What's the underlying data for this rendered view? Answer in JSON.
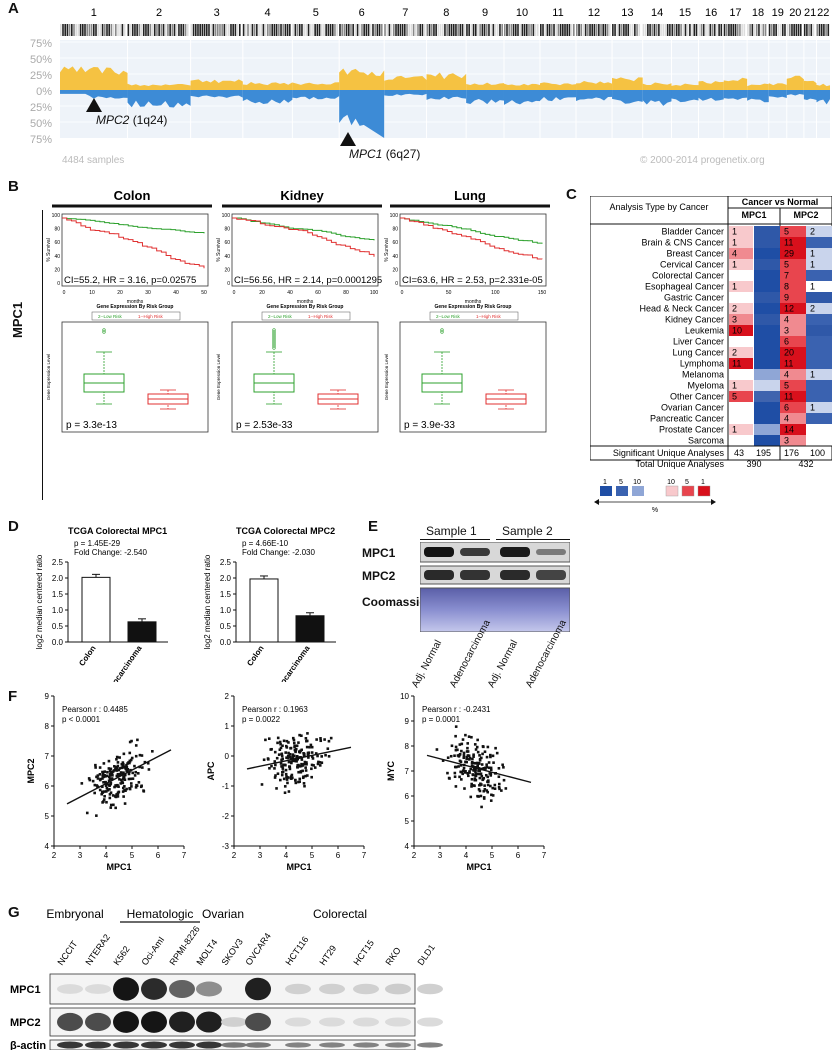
{
  "panel_labels": {
    "a": "A",
    "b": "B",
    "c": "C",
    "d": "D",
    "e": "E",
    "f": "F",
    "g": "G"
  },
  "panel_a": {
    "chromosomes": [
      "1",
      "2",
      "3",
      "4",
      "5",
      "6",
      "7",
      "8",
      "9",
      "10",
      "11",
      "12",
      "13",
      "14",
      "15",
      "16",
      "17",
      "18",
      "19",
      "20",
      "21",
      "22"
    ],
    "y_ticks": [
      "75%",
      "50%",
      "25%",
      "0%",
      "25%",
      "50%",
      "75%"
    ],
    "gain_color": "#f5c242",
    "loss_color": "#3d8bd6",
    "samples_text": "4484 samples",
    "copyright_text": "© 2000-2014 progenetix.org",
    "mpc2_gene": "MPC2",
    "mpc2_loc": "(1q24)",
    "mpc1_gene": "MPC1",
    "mpc1_loc": "(6q27)"
  },
  "panel_b": {
    "side_label": "MPC1",
    "km_ylabel": "% Survival",
    "km_xlabel": "months",
    "box_title": "Gene Expression By Risk Group",
    "box_ylabel": "Gene Expression Level",
    "low_risk_color": "#2ca02c",
    "high_risk_color": "#e03030",
    "cancers": [
      {
        "name": "Colon",
        "stats": "CI=55.2, HR = 3.16, p=0.02575",
        "legend_low": "2--Low Risk",
        "legend_high": "1--High Risk",
        "box_p": "p = 3.3e-13",
        "x_ticks": [
          "0",
          "10",
          "20",
          "30",
          "40",
          "50"
        ]
      },
      {
        "name": "Kidney",
        "stats": "CI=56.56, HR = 2.14, p=0.0001295",
        "legend_low": "2--Low Risk",
        "legend_high": "1--High Risk",
        "box_p": "p = 2.53e-33",
        "x_ticks": [
          "0",
          "20",
          "40",
          "60",
          "80",
          "100"
        ]
      },
      {
        "name": "Lung",
        "stats": "CI=63.6, HR = 2.53, p=2.331e-05",
        "legend_low": "2--Low Risk",
        "legend_high": "1--High Risk",
        "box_p": "p = 3.9e-33",
        "x_ticks": [
          "0",
          "50",
          "100",
          "150"
        ]
      }
    ]
  },
  "panel_c": {
    "header_left": "Analysis Type by Cancer",
    "header_group": "Cancer vs Normal",
    "col_mpc1": "MPC1",
    "col_mpc2": "MPC2",
    "rows": [
      {
        "name": "Bladder Cancer",
        "m1_up": "1",
        "m1_down": "",
        "m2_up": "5",
        "m2_down": "2"
      },
      {
        "name": "Brain & CNS Cancer",
        "m1_up": "1",
        "m1_down": "",
        "m2_up": "11",
        "m2_down": ""
      },
      {
        "name": "Breast Cancer",
        "m1_up": "4",
        "m1_down": "",
        "m2_up": "29",
        "m2_down": "1"
      },
      {
        "name": "Cervical Cancer",
        "m1_up": "1",
        "m1_down": "",
        "m2_up": "5",
        "m2_down": "1"
      },
      {
        "name": "Colorectal Cancer",
        "m1_up": "",
        "m1_down": "",
        "m2_up": "7",
        "m2_down": ""
      },
      {
        "name": "Esophageal Cancer",
        "m1_up": "1",
        "m1_down": "",
        "m2_up": "8",
        "m2_down": "1"
      },
      {
        "name": "Gastric Cancer",
        "m1_up": "",
        "m1_down": "",
        "m2_up": "9",
        "m2_down": ""
      },
      {
        "name": "Head & Neck Cancer",
        "m1_up": "2",
        "m1_down": "",
        "m2_up": "12",
        "m2_down": "2"
      },
      {
        "name": "Kidney Cancer",
        "m1_up": "3",
        "m1_down": "",
        "m2_up": "4",
        "m2_down": ""
      },
      {
        "name": "Leukemia",
        "m1_up": "10",
        "m1_down": "",
        "m2_up": "3",
        "m2_down": ""
      },
      {
        "name": "Liver Cancer",
        "m1_up": "",
        "m1_down": "",
        "m2_up": "6",
        "m2_down": ""
      },
      {
        "name": "Lung Cancer",
        "m1_up": "2",
        "m1_down": "",
        "m2_up": "20",
        "m2_down": ""
      },
      {
        "name": "Lymphoma",
        "m1_up": "11",
        "m1_down": "",
        "m2_up": "11",
        "m2_down": ""
      },
      {
        "name": "Melanoma",
        "m1_up": "",
        "m1_down": "",
        "m2_up": "4",
        "m2_down": "1"
      },
      {
        "name": "Myeloma",
        "m1_up": "1",
        "m1_down": "",
        "m2_up": "5",
        "m2_down": ""
      },
      {
        "name": "Other Cancer",
        "m1_up": "5",
        "m1_down": "",
        "m2_up": "11",
        "m2_down": ""
      },
      {
        "name": "Ovarian Cancer",
        "m1_up": "",
        "m1_down": "",
        "m2_up": "6",
        "m2_down": "1"
      },
      {
        "name": "Pancreatic Cancer",
        "m1_up": "",
        "m1_down": "",
        "m2_up": "4",
        "m2_down": ""
      },
      {
        "name": "Prostate Cancer",
        "m1_up": "1",
        "m1_down": "",
        "m2_up": "14",
        "m2_down": ""
      },
      {
        "name": "Sarcoma",
        "m1_up": "",
        "m1_down": "",
        "m2_up": "3",
        "m2_down": ""
      }
    ],
    "sig_label": "Significant Unique Analyses",
    "sig_m1_up": "43",
    "sig_m1_down": "195",
    "sig_m2_up": "176",
    "sig_m2_down": "100",
    "total_label": "Total Unique Analyses",
    "total_m1": "390",
    "total_m2": "432",
    "legend_blue_labels": [
      "1",
      "5",
      "10"
    ],
    "legend_red_labels": [
      "10",
      "5",
      "1"
    ],
    "legend_pct": "%"
  },
  "panel_d": {
    "charts": [
      {
        "title": "TCGA Colorectal MPC1",
        "p_text": "p = 1.45E-29",
        "fc_text": "Fold Change: -2.540",
        "ylabel": "log2 median centered ratio",
        "cats": [
          "Colon",
          "Colon Adenocarcinoma"
        ],
        "values": [
          2.02,
          0.63
        ],
        "ylim": [
          0,
          2.5
        ],
        "y_ticks": [
          "0.0",
          "0.5",
          "1.0",
          "1.5",
          "2.0",
          "2.5"
        ]
      },
      {
        "title": "TCGA Colorectal MPC2",
        "p_text": "p = 4.66E-10",
        "fc_text": "Fold Change: -2.030",
        "ylabel": "log2 median centered ratio",
        "cats": [
          "Colon",
          "Colon Adenocarcinoma"
        ],
        "values": [
          1.97,
          0.82
        ],
        "ylim": [
          0,
          2.5
        ],
        "y_ticks": [
          "0.0",
          "0.5",
          "1.0",
          "1.5",
          "2.0",
          "2.5"
        ]
      }
    ]
  },
  "panel_e": {
    "sample1": "Sample 1",
    "sample2": "Sample 2",
    "row_labels": [
      "MPC1",
      "MPC2",
      "Coomassie"
    ],
    "lanes": [
      "Adj. Normal",
      "Adenocarcinoma",
      "Adj. Normal",
      "Adenocarcinoma"
    ]
  },
  "panel_f": {
    "x_label": "MPC1",
    "x_ticks": [
      "2",
      "3",
      "4",
      "5",
      "6",
      "7"
    ],
    "plots": [
      {
        "ylabel": "MPC2",
        "r_text": "Pearson r : 0.4485",
        "p_text": "p < 0.0001",
        "y_ticks": [
          "4",
          "5",
          "6",
          "7",
          "8",
          "9"
        ],
        "ylim": [
          4,
          9
        ],
        "slope": 0.45,
        "intercept": 4.28
      },
      {
        "ylabel": "APC",
        "r_text": "Pearson r : 0.1963",
        "p_text": "p = 0.0022",
        "y_ticks": [
          "-3",
          "-2",
          "-1",
          "0",
          "1",
          "2"
        ],
        "ylim": [
          -3,
          2
        ],
        "slope": 0.18,
        "intercept": -0.88
      },
      {
        "ylabel": "MYC",
        "r_text": "Pearson r : -0.2431",
        "p_text": "p = 0.0001",
        "y_ticks": [
          "4",
          "5",
          "6",
          "7",
          "8",
          "9",
          "10"
        ],
        "ylim": [
          4,
          10
        ],
        "slope": -0.27,
        "intercept": 8.3
      }
    ]
  },
  "panel_g": {
    "groups": [
      "Embryonal",
      "Hematologic",
      "Ovarian",
      "Colorectal"
    ],
    "cell_lines": [
      "NCCIT",
      "NTERA2",
      "K562",
      "Oci-AmI",
      "RPMI-8226",
      "MOLT4",
      "SKOV3",
      "OVCAR4",
      "HCT116",
      "HT29",
      "HCT15",
      "RKO",
      "DLD1"
    ],
    "row_labels": [
      "MPC1",
      "MPC2",
      "β-actin"
    ]
  }
}
